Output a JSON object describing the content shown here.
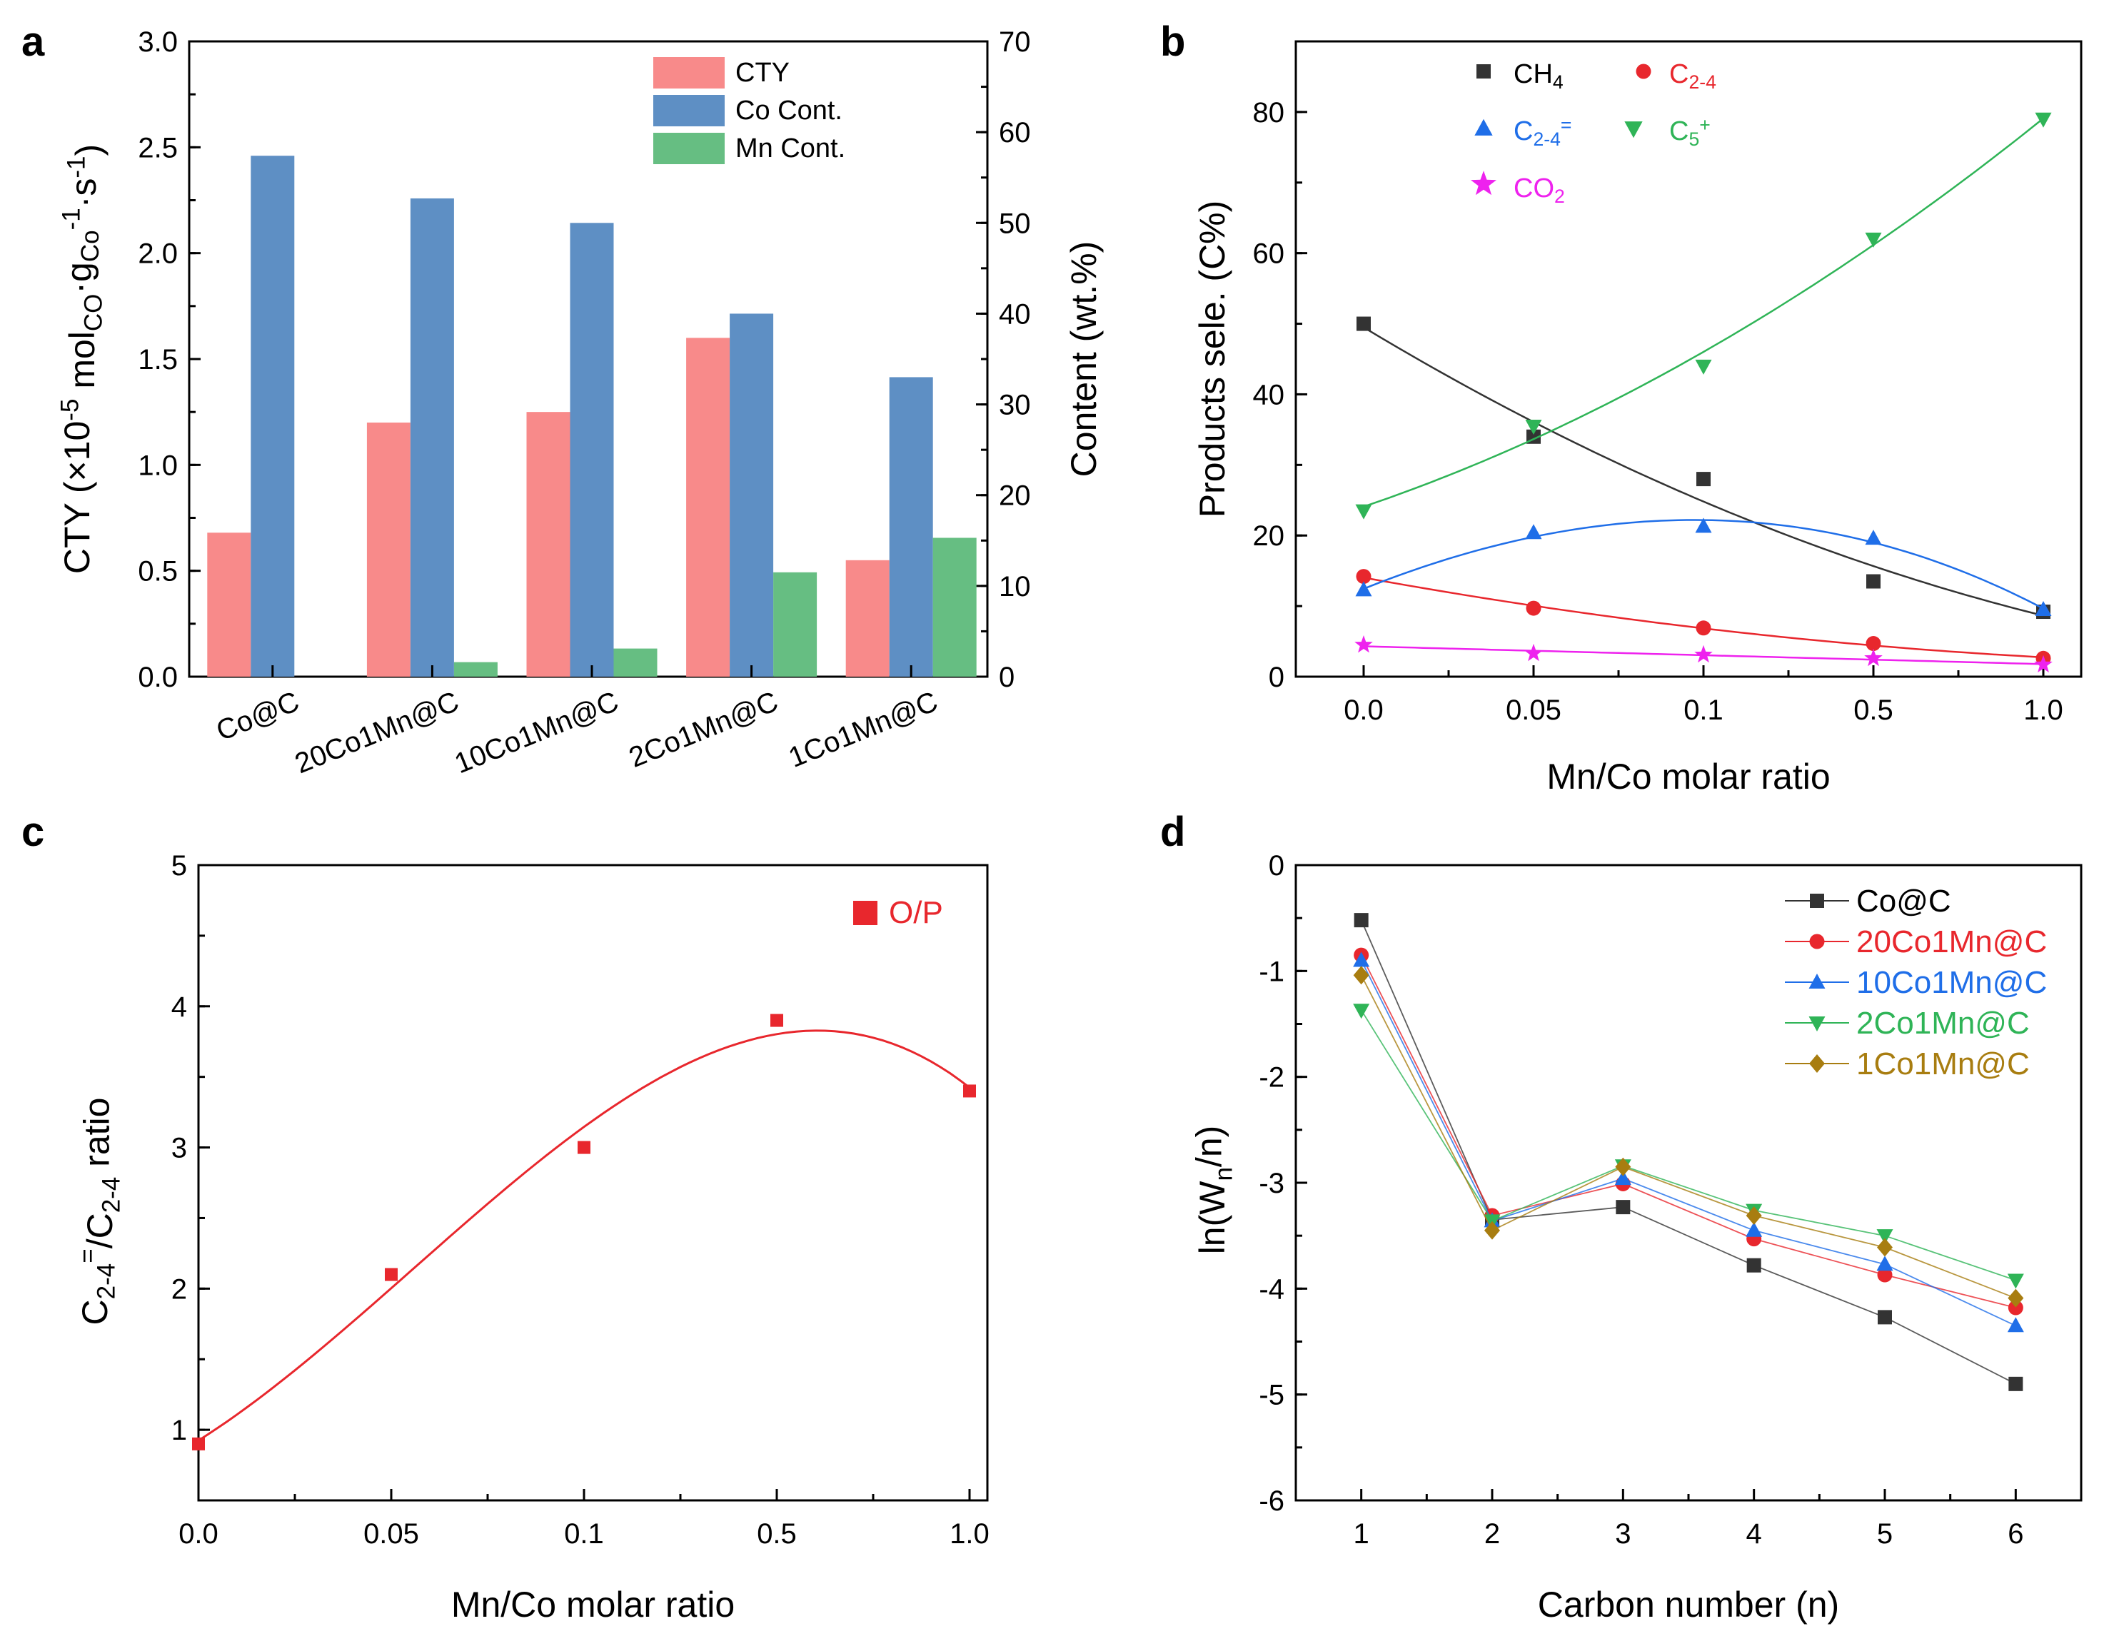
{
  "panels": {
    "a": "a",
    "b": "b",
    "c": "c",
    "d": "d"
  },
  "colors": {
    "cty": "#f88a8a",
    "co": "#5e8fc4",
    "mn": "#66be82",
    "ch4": "#333333",
    "c24": "#e8272d",
    "c24o": "#1f6ee8",
    "c5": "#2fb457",
    "co2": "#ee22ee",
    "op": "#e8272d",
    "d_co": "#333333",
    "d_20": "#e8272d",
    "d_10": "#1f6ee8",
    "d_2": "#2fb457",
    "d_1": "#a87d10"
  },
  "chart_data": [
    {
      "id": "a",
      "type": "bar",
      "categories": [
        "Co@C",
        "20Co1Mn@C",
        "10Co1Mn@C",
        "2Co1Mn@C",
        "1Co1Mn@C"
      ],
      "series": [
        {
          "name": "CTY",
          "axis": "left",
          "values": [
            0.68,
            1.2,
            1.25,
            1.6,
            0.55
          ]
        },
        {
          "name": "Co Cont.",
          "axis": "right",
          "values": [
            57.4,
            52.7,
            50.0,
            40.0,
            33.0
          ]
        },
        {
          "name": "Mn Cont.",
          "axis": "right",
          "values": [
            0,
            1.6,
            3.1,
            11.5,
            15.3
          ]
        }
      ],
      "ylim": [
        0,
        3.0
      ],
      "yticks": [
        "0.0",
        "0.5",
        "1.0",
        "1.5",
        "2.0",
        "2.5",
        "3.0"
      ],
      "y2lim": [
        0,
        70
      ],
      "y2ticks": [
        "0",
        "10",
        "20",
        "30",
        "40",
        "50",
        "60",
        "70"
      ],
      "ylabel": "CTY (×10⁻⁵ mol_CO·g_Co⁻¹·s⁻¹)",
      "y2label": "Content (wt.%)",
      "legend": "top-right"
    },
    {
      "id": "b",
      "type": "scatter",
      "xcats": [
        "0.0",
        "0.05",
        "0.1",
        "0.5",
        "1.0"
      ],
      "series": [
        {
          "name": "CH4",
          "values": [
            50.0,
            34.0,
            28.0,
            13.5,
            9.2
          ]
        },
        {
          "name": "C2-4",
          "values": [
            14.2,
            9.7,
            6.9,
            4.7,
            2.6
          ]
        },
        {
          "name": "C2-4=",
          "values": [
            12.3,
            20.4,
            21.3,
            19.6,
            9.5
          ]
        },
        {
          "name": "C5+",
          "values": [
            23.5,
            35.5,
            44.0,
            62.0,
            79.0
          ]
        },
        {
          "name": "CO2",
          "values": [
            4.5,
            3.3,
            3.1,
            2.6,
            1.7
          ]
        }
      ],
      "ylim": [
        0,
        90
      ],
      "yticks": [
        "0",
        "20",
        "40",
        "60",
        "80"
      ],
      "xlabel": "Mn/Co molar ratio",
      "ylabel": "Products sele. (C%)",
      "legend": "top-left"
    },
    {
      "id": "c",
      "type": "scatter",
      "xcats": [
        "0.0",
        "0.05",
        "0.1",
        "0.5",
        "1.0"
      ],
      "series": [
        {
          "name": "O/P",
          "values": [
            0.9,
            2.1,
            3.0,
            3.9,
            3.4
          ]
        }
      ],
      "ylim": [
        0.5,
        5
      ],
      "yticks": [
        "1",
        "2",
        "3",
        "4",
        "5"
      ],
      "xlabel": "Mn/Co molar ratio",
      "ylabel": "C2-4=/C2-4 ratio",
      "legend": "top-right"
    },
    {
      "id": "d",
      "type": "line",
      "x": [
        1,
        2,
        3,
        4,
        5,
        6
      ],
      "xticks": [
        "1",
        "2",
        "3",
        "4",
        "5",
        "6"
      ],
      "series": [
        {
          "name": "Co@C",
          "values": [
            -0.52,
            -3.35,
            -3.23,
            -3.78,
            -4.27,
            -4.9
          ]
        },
        {
          "name": "20Co1Mn@C",
          "values": [
            -0.85,
            -3.31,
            -3.01,
            -3.53,
            -3.87,
            -4.18
          ]
        },
        {
          "name": "10Co1Mn@C",
          "values": [
            -0.9,
            -3.36,
            -2.96,
            -3.45,
            -3.77,
            -4.35
          ]
        },
        {
          "name": "2Co1Mn@C",
          "values": [
            -1.37,
            -3.36,
            -2.84,
            -3.26,
            -3.5,
            -3.92
          ]
        },
        {
          "name": "1Co1Mn@C",
          "values": [
            -1.04,
            -3.45,
            -2.85,
            -3.31,
            -3.61,
            -4.09
          ]
        }
      ],
      "xlim": [
        0.5,
        6.5
      ],
      "ylim": [
        -6,
        0
      ],
      "yticks": [
        "-6",
        "-5",
        "-4",
        "-3",
        "-2",
        "-1",
        "0"
      ],
      "xlabel": "Carbon number (n)",
      "ylabel": "ln(Wn/n)",
      "legend": "top-right"
    }
  ]
}
